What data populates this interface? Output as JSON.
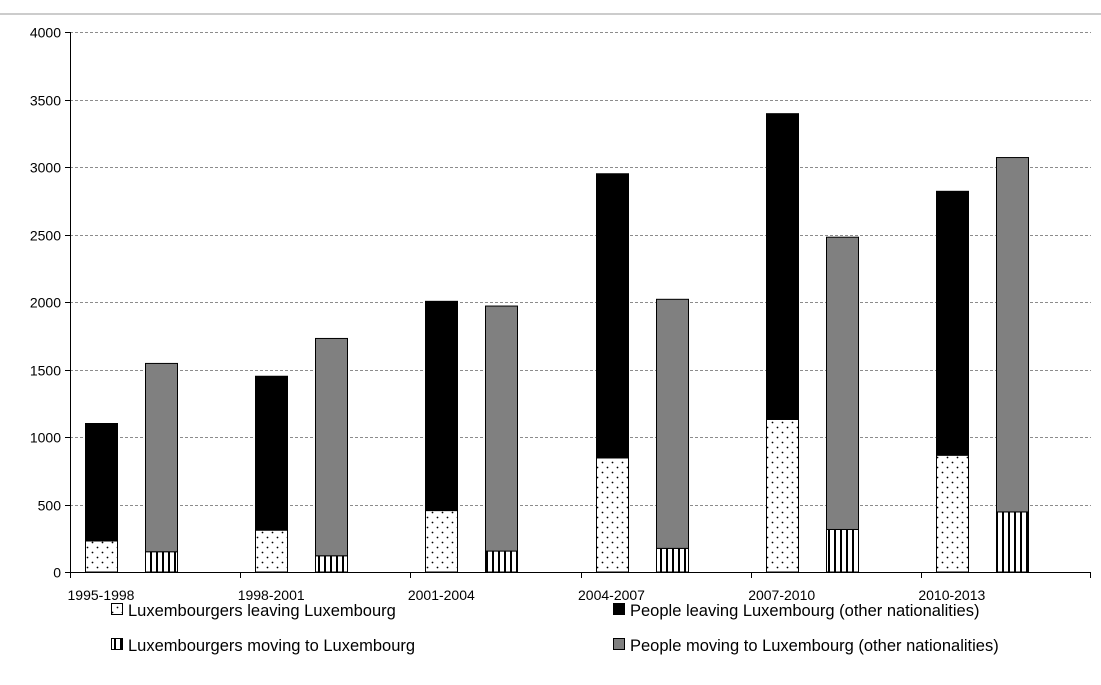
{
  "chart_data": {
    "type": "bar",
    "stacked": true,
    "title": "",
    "xlabel": "",
    "ylabel": "",
    "ylim": [
      0,
      4000
    ],
    "yticks": [
      0,
      500,
      1000,
      1500,
      2000,
      2500,
      3000,
      3500,
      4000
    ],
    "grid": true,
    "legend_position": "bottom",
    "categories": [
      "1995-1998",
      "1998-2001",
      "2001-2004",
      "2004-2007",
      "2007-2010",
      "2010-2013"
    ],
    "groups": [
      {
        "bar": "leaving",
        "segments": [
          {
            "series": "Luxembourgers leaving Luxembourg",
            "values": [
              230,
              310,
              455,
              845,
              1130,
              865
            ]
          },
          {
            "series": "People leaving Luxembourg (other nationalities)",
            "values": [
              870,
              1140,
              1550,
              2105,
              2265,
              1955
            ]
          }
        ]
      },
      {
        "bar": "moving",
        "segments": [
          {
            "series": "Luxembourgers moving to Luxembourg",
            "values": [
              150,
              120,
              155,
              175,
              315,
              445
            ]
          },
          {
            "series": "People moving to Luxembourg (other nationalities)",
            "values": [
              1395,
              1610,
              1815,
              1845,
              2165,
              2625
            ]
          }
        ]
      }
    ],
    "legend": [
      {
        "label": "Luxembourgers leaving Luxembourg",
        "pattern": "dots",
        "color": "#ffffff"
      },
      {
        "label": "People leaving Luxembourg (other nationalities)",
        "pattern": "solid",
        "color": "#000000"
      },
      {
        "label": "Luxembourgers moving to Luxembourg",
        "pattern": "vertical-stripes",
        "color": "#ffffff"
      },
      {
        "label": "People moving to Luxembourg (other nationalities)",
        "pattern": "solid",
        "color": "#808080"
      }
    ]
  }
}
